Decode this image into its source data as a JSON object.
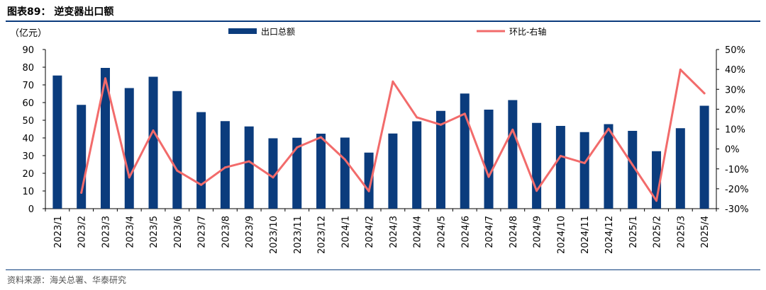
{
  "figure": {
    "title": "图表89：  逆变器出口额",
    "source": "资料来源：海关总署、华泰研究"
  },
  "chart_data": {
    "type": "bar",
    "left_unit": "（亿元）",
    "categories": [
      "2023/1",
      "2023/2",
      "2023/3",
      "2023/4",
      "2023/5",
      "2023/6",
      "2023/7",
      "2023/8",
      "2023/9",
      "2023/10",
      "2023/11",
      "2023/12",
      "2024/1",
      "2024/2",
      "2024/3",
      "2024/4",
      "2024/5",
      "2024/6",
      "2024/7",
      "2024/8",
      "2024/9",
      "2024/10",
      "2024/11",
      "2024/12",
      "2025/1",
      "2025/2",
      "2025/3",
      "2025/4"
    ],
    "series": [
      {
        "name": "出口总额",
        "type": "bar",
        "axis": "left",
        "color": "#0B3C7D",
        "values": [
          75.3,
          58.7,
          79.6,
          68.2,
          74.6,
          66.5,
          54.6,
          49.5,
          46.5,
          39.8,
          40.1,
          42.4,
          40.2,
          31.7,
          42.5,
          49.4,
          55.3,
          65.1,
          56.0,
          61.4,
          48.5,
          46.8,
          43.3,
          47.8,
          44.0,
          32.5,
          45.5,
          58.2
        ]
      },
      {
        "name": "环比-右轴",
        "type": "line",
        "axis": "right",
        "color": "#F26B6B",
        "values": [
          null,
          -22.0,
          35.5,
          -14.3,
          9.3,
          -10.9,
          -18.0,
          -9.3,
          -6.2,
          -14.3,
          0.8,
          5.9,
          -5.3,
          -21.2,
          33.9,
          15.9,
          12.2,
          17.7,
          -14.0,
          9.7,
          -21.0,
          -3.5,
          -7.1,
          10.2,
          -8.0,
          -26.0,
          39.9,
          28.0
        ]
      }
    ],
    "y_left": {
      "min": 0,
      "max": 90,
      "ticks": [
        0,
        10,
        20,
        30,
        40,
        50,
        60,
        70,
        80,
        90
      ]
    },
    "y_right": {
      "min": -30,
      "max": 50,
      "ticks": [
        -30,
        -20,
        -10,
        0,
        10,
        20,
        30,
        40,
        50
      ],
      "tick_labels": [
        "-30%",
        "-20%",
        "-10%",
        "0%",
        "10%",
        "20%",
        "30%",
        "40%",
        "50%"
      ]
    },
    "grid": false,
    "legend_position": "top"
  }
}
